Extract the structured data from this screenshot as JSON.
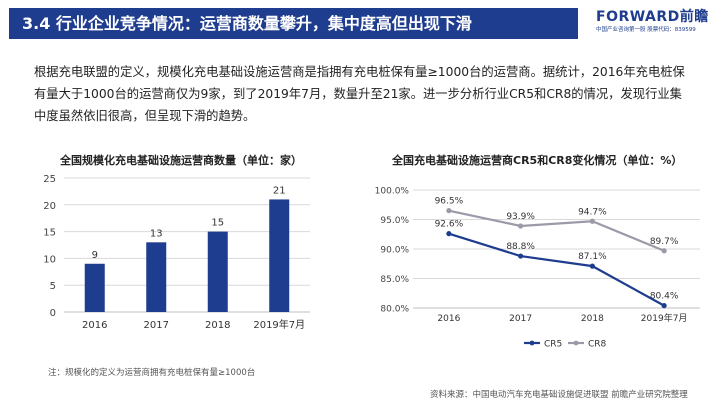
{
  "header": {
    "title": "3.4 行业企业竞争情况：运营商数量攀升，集中度高但出现下滑",
    "logo_main": "FORWARD前瞻",
    "logo_sub": "中国产业咨询第一股  股票代码：839599"
  },
  "body": {
    "paragraph": "根据充电联盟的定义，规模化充电基础设施运营商是指拥有充电桩保有量≥1000台的运营商。据统计，2016年充电桩保有量大于1000台的运营商仅为9家，到了2019年7月，数量升至21家。进一步分析行业CR5和CR8的情况，发现行业集中度虽然依旧很高，但呈现下滑的趋势。"
  },
  "footer": {
    "note": "注：规模化的定义为运营商拥有充电桩保有量≥1000台",
    "source": "资料来源：中国电动汽车充电基础设施促进联盟 前瞻产业研究院整理"
  },
  "colors": {
    "title_bar": "#1f3d8f",
    "bar": "#1f3d8f",
    "cr5": "#1f3d8f",
    "cr8": "#9a9aa8",
    "grid": "#d9d9d9"
  },
  "chart_data": [
    {
      "type": "bar",
      "title": "全国规模化充电基础设施运营商数量（单位：家）",
      "categories": [
        "2016",
        "2017",
        "2018",
        "2019年7月"
      ],
      "values": [
        9,
        13,
        15,
        21
      ],
      "ylim": [
        0,
        25
      ],
      "yticks": [
        "0",
        "5",
        "10",
        "15",
        "20",
        "25"
      ],
      "grid": true,
      "legend": "none"
    },
    {
      "type": "line",
      "title": "全国充电基础设施运营商CR5和CR8变化情况（单位：%）",
      "categories": [
        "2016",
        "2017",
        "2018",
        "2019年7月"
      ],
      "series": [
        {
          "name": "CR5",
          "values": [
            92.6,
            88.8,
            87.1,
            80.4
          ],
          "labels": [
            "92.6%",
            "88.8%",
            "87.1%",
            "80.4%"
          ]
        },
        {
          "name": "CR8",
          "values": [
            96.5,
            93.9,
            94.7,
            89.7
          ],
          "labels": [
            "96.5%",
            "93.9%",
            "94.7%",
            "89.7%"
          ]
        }
      ],
      "ylim": [
        80,
        100
      ],
      "yticks": [
        "80.0%",
        "85.0%",
        "90.0%",
        "95.0%",
        "100.0%"
      ],
      "grid": true,
      "legend": "bottom"
    }
  ]
}
